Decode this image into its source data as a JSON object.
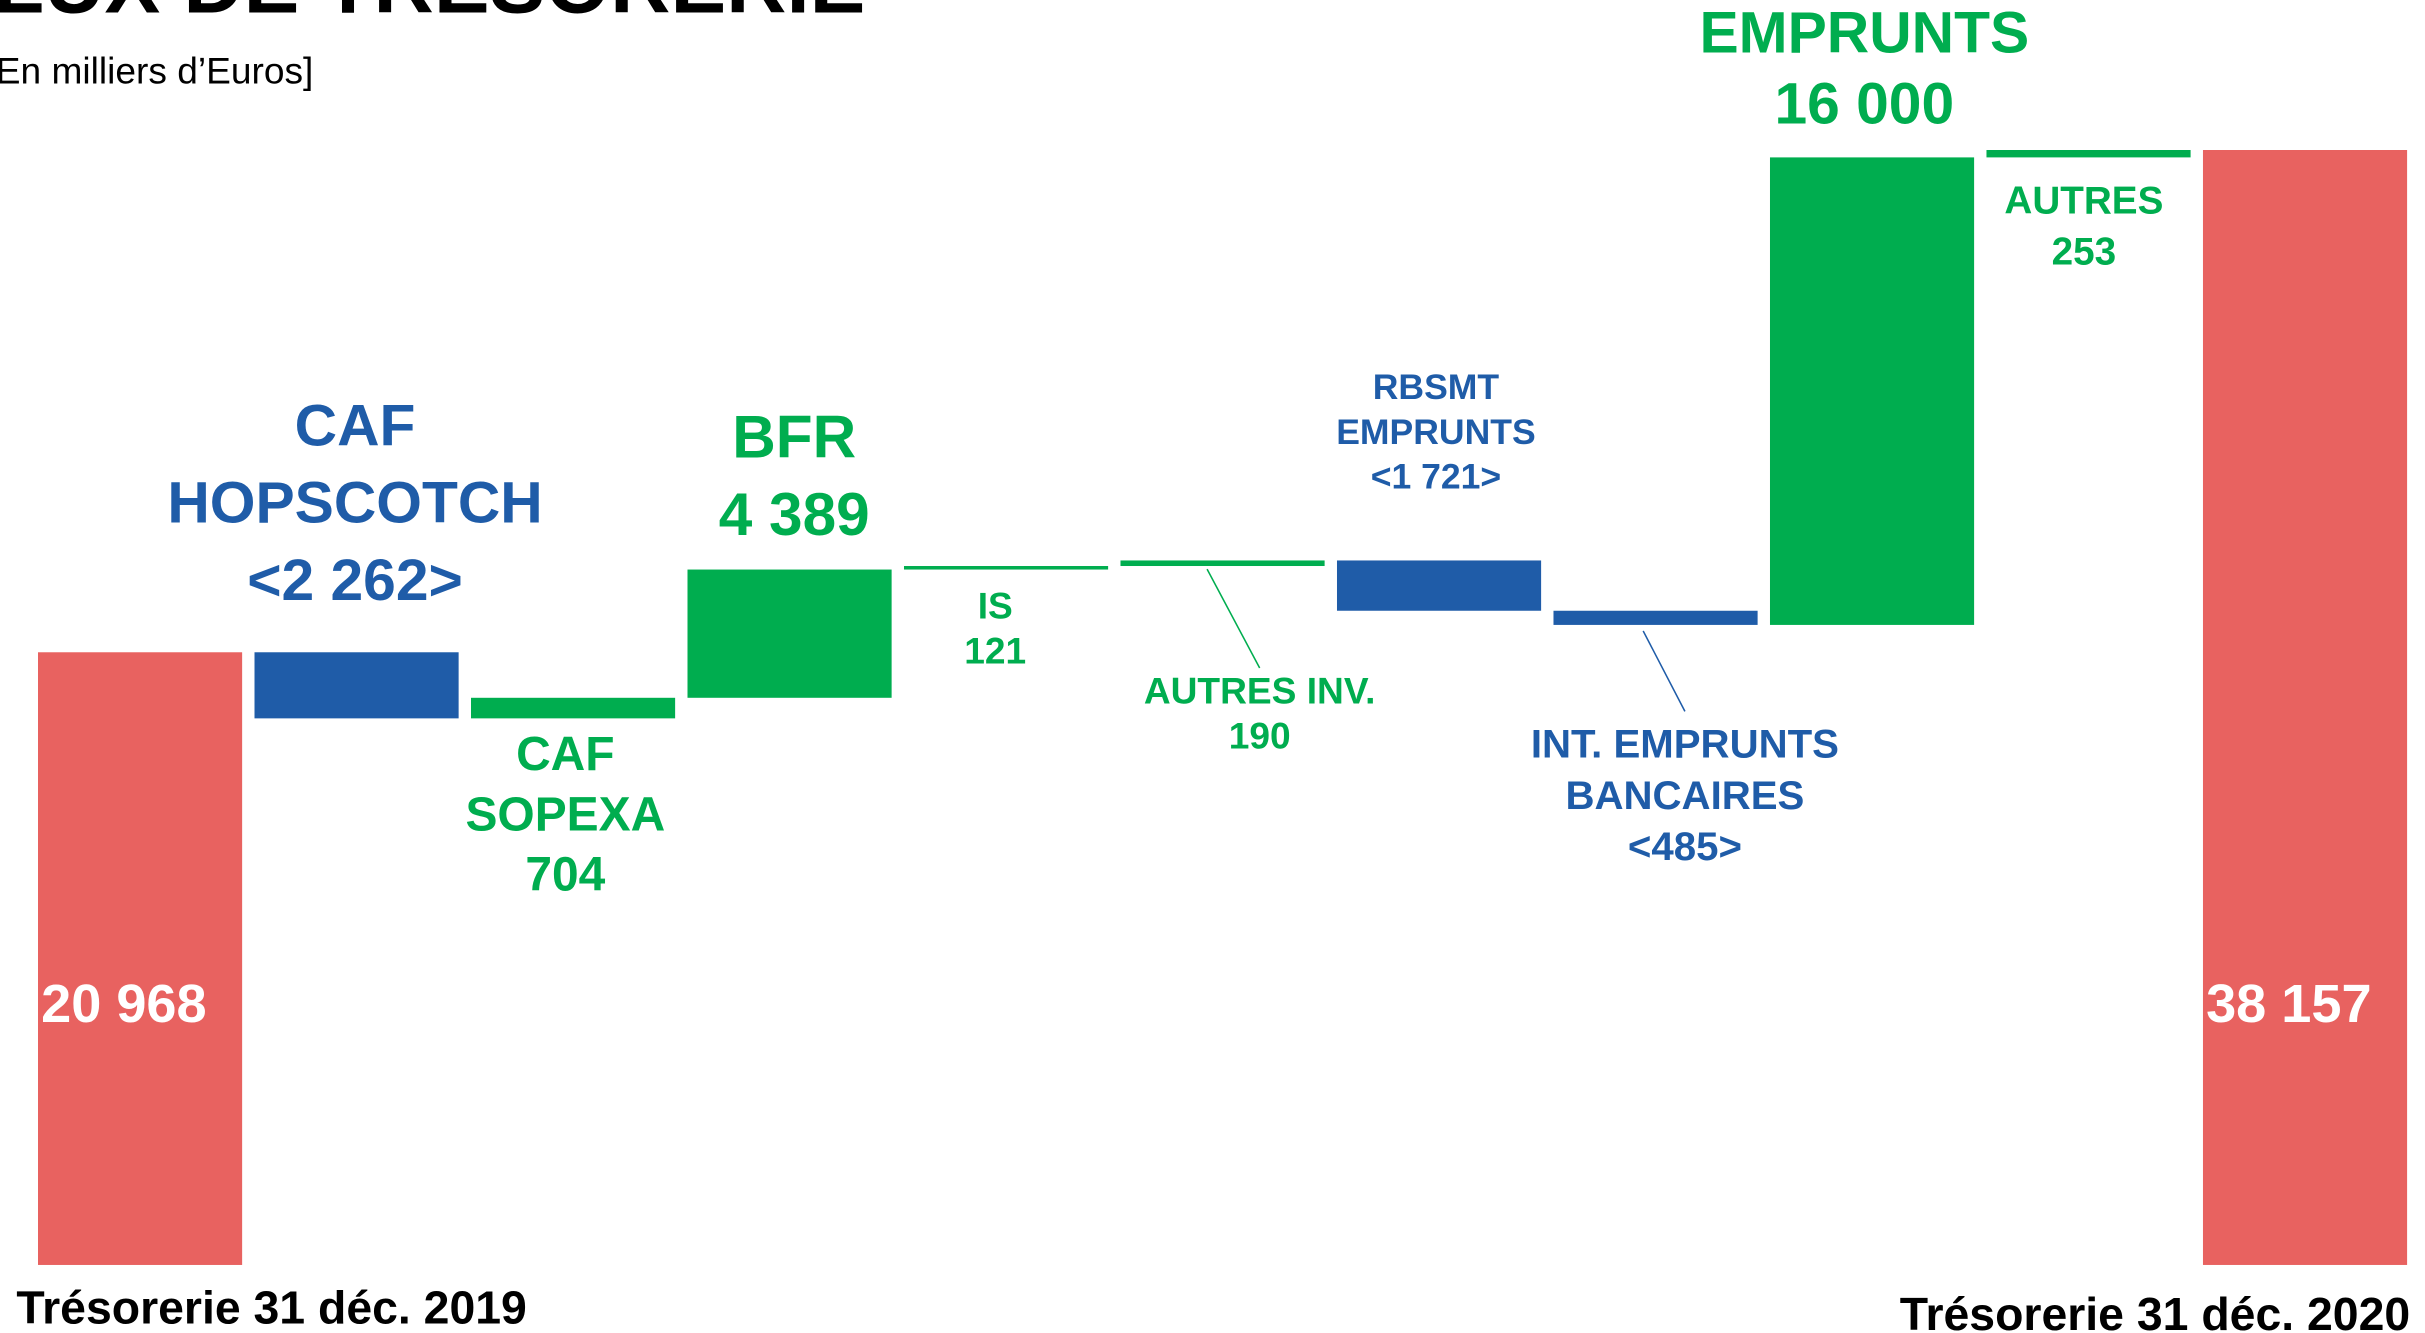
{
  "chart_data": {
    "type": "waterfall",
    "title": "FLUX DE TRÉSORERIE",
    "subtitle": "[En milliers d’Euros]",
    "colors": {
      "total": "#e86260",
      "increase": "#00ad4f",
      "decrease": "#1f5ca8"
    },
    "start": {
      "label": "Trésorerie 31 déc. 2019",
      "value": 20968,
      "value_label": "20 968"
    },
    "steps": {
      "categories": [
        [
          "CAF",
          "HOPSCOTCH"
        ],
        [
          "CAF",
          "SOPEXA"
        ],
        [
          "BFR"
        ],
        [
          "IS"
        ],
        [
          "AUTRES INV."
        ],
        [
          "RBSMT",
          "EMPRUNTS"
        ],
        [
          "INT. EMPRUNTS",
          "BANCAIRES"
        ],
        [
          "EMPRUNTS"
        ],
        [
          "AUTRES"
        ]
      ],
      "values": [
        -2262,
        704,
        4389,
        121,
        190,
        -1721,
        -485,
        16000,
        253
      ],
      "value_labels": [
        "<2 262>",
        "704",
        "4 389",
        "121",
        "190",
        "<1 721>",
        "<485>",
        "16 000",
        "253"
      ]
    },
    "end": {
      "label": "Trésorerie 31 déc. 2020",
      "value": 38157,
      "value_label": "38 157"
    }
  }
}
